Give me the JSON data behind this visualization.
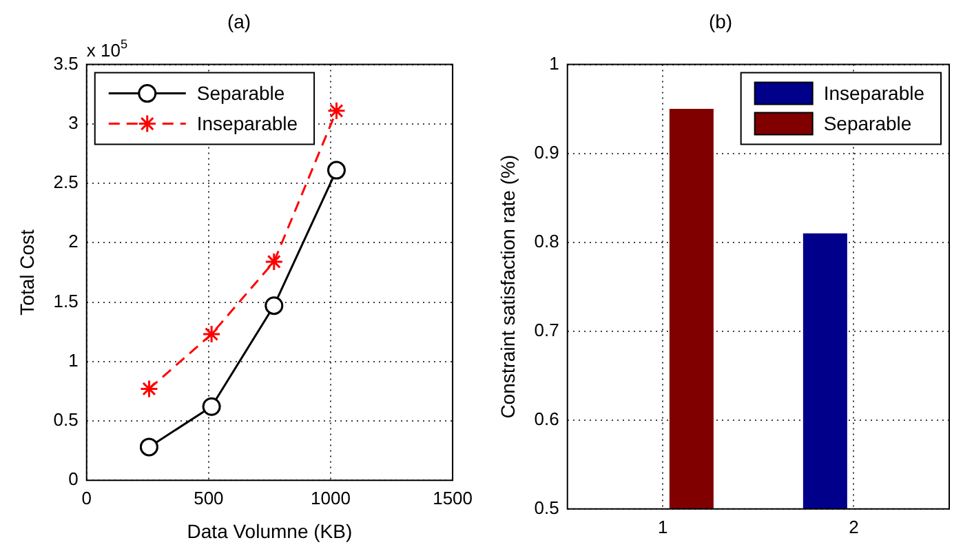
{
  "chart_data": [
    {
      "type": "line",
      "title": "(a)",
      "xlabel": "Data Volumne (KB)",
      "ylabel": "Total Cost",
      "annotations": [
        "x 10$^{5}$"
      ],
      "x": [
        256,
        512,
        768,
        1024
      ],
      "series": [
        {
          "name": "Separable",
          "color": "#000000",
          "values": [
            0.28,
            0.62,
            1.47,
            2.61
          ],
          "marker": "circle",
          "line_style": "solid"
        },
        {
          "name": "Inseparable",
          "color": "#ff0000",
          "values": [
            0.77,
            1.23,
            1.84,
            3.11
          ],
          "marker": "cross",
          "line_style": "dashed"
        }
      ],
      "xlim": [
        0,
        1500
      ],
      "xticks": [
        0,
        500,
        1000,
        1500
      ],
      "ylim": [
        0,
        3.5
      ],
      "yticks": [
        0,
        0.5,
        1,
        1.5,
        2,
        2.5,
        3,
        3.5
      ],
      "grid": true,
      "legend": "top left"
    },
    {
      "type": "bar",
      "title": "(b)",
      "ylabel": "Constraint satisfaction rate (%)",
      "categories": [
        "1",
        "2"
      ],
      "series": [
        {
          "name": "Inseparable",
          "color": "#00008b",
          "values": [
            null,
            0.81
          ]
        },
        {
          "name": "Separable",
          "color": "#800000",
          "values": [
            0.95,
            null
          ]
        }
      ],
      "ylim": [
        0.5,
        1
      ],
      "yticks": [
        0.5,
        0.6,
        0.7,
        0.8,
        0.9,
        1
      ],
      "grid": true,
      "legend": "top right"
    }
  ]
}
